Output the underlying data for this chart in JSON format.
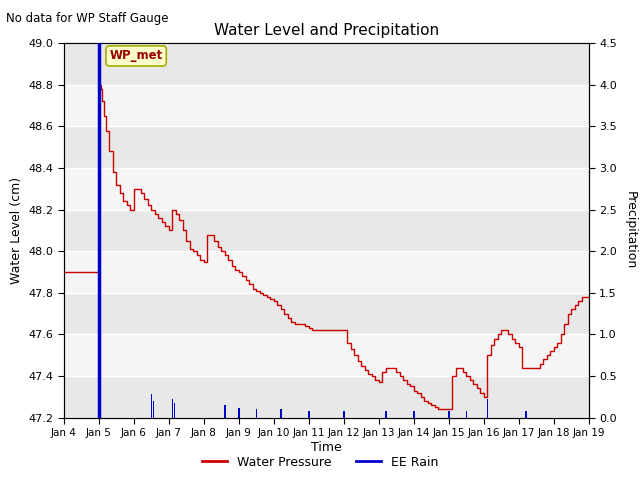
{
  "title": "Water Level and Precipitation",
  "subtitle": "No data for WP Staff Gauge",
  "xlabel": "Time",
  "ylabel_left": "Water Level (cm)",
  "ylabel_right": "Precipitation",
  "annotation_text": "WP_met",
  "ylim_left": [
    47.2,
    49.0
  ],
  "ylim_right": [
    0.0,
    4.5
  ],
  "yticks_left": [
    47.2,
    47.4,
    47.6,
    47.8,
    48.0,
    48.2,
    48.4,
    48.6,
    48.8,
    49.0
  ],
  "yticks_right": [
    0.0,
    0.5,
    1.0,
    1.5,
    2.0,
    2.5,
    3.0,
    3.5,
    4.0,
    4.5
  ],
  "legend_items": [
    "Water Pressure",
    "EE Rain"
  ],
  "water_pressure_color": "#cc0000",
  "rain_color": "#0000cc",
  "xmin": 0,
  "xmax": 15,
  "xtick_positions": [
    0,
    1,
    2,
    3,
    4,
    5,
    6,
    7,
    8,
    9,
    10,
    11,
    12,
    13,
    14,
    15
  ],
  "xtick_labels": [
    "Jan 4",
    "Jan 5",
    "Jan 6",
    "Jan 7",
    "Jan 8",
    "Jan 9",
    "Jan 10",
    "Jan 11",
    "Jan 12",
    "Jan 13",
    "Jan 14",
    "Jan 15",
    "Jan 16",
    "Jan 17",
    "Jan 18",
    "Jan 19"
  ],
  "wp_x": [
    0.0,
    0.5,
    0.9,
    1.0,
    1.05,
    1.1,
    1.15,
    1.2,
    1.3,
    1.4,
    1.5,
    1.6,
    1.7,
    1.8,
    1.9,
    2.0,
    2.1,
    2.2,
    2.3,
    2.4,
    2.5,
    2.6,
    2.7,
    2.8,
    2.9,
    3.0,
    3.1,
    3.2,
    3.3,
    3.4,
    3.5,
    3.6,
    3.7,
    3.8,
    3.9,
    4.0,
    4.1,
    4.2,
    4.3,
    4.4,
    4.5,
    4.6,
    4.7,
    4.8,
    4.9,
    5.0,
    5.1,
    5.2,
    5.3,
    5.4,
    5.5,
    5.6,
    5.7,
    5.8,
    5.9,
    6.0,
    6.1,
    6.2,
    6.3,
    6.4,
    6.5,
    6.6,
    6.7,
    6.8,
    6.9,
    7.0,
    7.1,
    7.2,
    7.3,
    7.4,
    7.5,
    7.6,
    7.7,
    7.8,
    7.9,
    8.0,
    8.1,
    8.2,
    8.3,
    8.4,
    8.5,
    8.6,
    8.7,
    8.8,
    8.9,
    9.0,
    9.1,
    9.2,
    9.3,
    9.4,
    9.5,
    9.6,
    9.7,
    9.8,
    9.9,
    10.0,
    10.1,
    10.2,
    10.3,
    10.4,
    10.5,
    10.6,
    10.7,
    10.8,
    10.9,
    11.0,
    11.1,
    11.2,
    11.3,
    11.4,
    11.5,
    11.6,
    11.7,
    11.8,
    11.9,
    12.0,
    12.1,
    12.2,
    12.3,
    12.4,
    12.5,
    12.6,
    12.7,
    12.8,
    12.9,
    13.0,
    13.1,
    13.2,
    13.3,
    13.4,
    13.5,
    13.6,
    13.7,
    13.8,
    13.9,
    14.0,
    14.1,
    14.2,
    14.3,
    14.4,
    14.5,
    14.6,
    14.7,
    14.8,
    14.9,
    15.0
  ],
  "wp_y": [
    47.9,
    47.9,
    47.9,
    48.8,
    48.78,
    48.72,
    48.65,
    48.58,
    48.48,
    48.38,
    48.32,
    48.28,
    48.24,
    48.22,
    48.2,
    48.3,
    48.3,
    48.28,
    48.25,
    48.22,
    48.2,
    48.18,
    48.16,
    48.14,
    48.12,
    48.1,
    48.2,
    48.18,
    48.15,
    48.1,
    48.05,
    48.01,
    48.0,
    47.98,
    47.96,
    47.95,
    48.08,
    48.08,
    48.05,
    48.02,
    48.0,
    47.98,
    47.96,
    47.93,
    47.91,
    47.9,
    47.88,
    47.86,
    47.84,
    47.82,
    47.81,
    47.8,
    47.79,
    47.78,
    47.77,
    47.76,
    47.74,
    47.72,
    47.7,
    47.68,
    47.66,
    47.65,
    47.65,
    47.65,
    47.64,
    47.63,
    47.62,
    47.62,
    47.62,
    47.62,
    47.62,
    47.62,
    47.62,
    47.62,
    47.62,
    47.62,
    47.56,
    47.53,
    47.5,
    47.47,
    47.45,
    47.43,
    47.41,
    47.4,
    47.38,
    47.37,
    47.42,
    47.44,
    47.44,
    47.44,
    47.42,
    47.4,
    47.38,
    47.36,
    47.35,
    47.33,
    47.32,
    47.3,
    47.28,
    47.27,
    47.26,
    47.25,
    47.24,
    47.24,
    47.24,
    47.24,
    47.4,
    47.44,
    47.44,
    47.42,
    47.4,
    47.38,
    47.36,
    47.34,
    47.32,
    47.3,
    47.5,
    47.55,
    47.58,
    47.6,
    47.62,
    47.62,
    47.6,
    47.58,
    47.56,
    47.54,
    47.44,
    47.44,
    47.44,
    47.44,
    47.44,
    47.46,
    47.48,
    47.5,
    47.52,
    47.54,
    47.56,
    47.6,
    47.65,
    47.7,
    47.72,
    47.74,
    47.76,
    47.78,
    47.78,
    47.78
  ],
  "rain_events": [
    [
      1.0,
      4.5
    ],
    [
      1.02,
      0.35
    ],
    [
      1.05,
      0.25
    ],
    [
      2.5,
      0.28
    ],
    [
      2.55,
      0.2
    ],
    [
      3.1,
      0.22
    ],
    [
      3.15,
      0.18
    ],
    [
      4.6,
      0.15
    ],
    [
      5.0,
      0.12
    ],
    [
      5.5,
      0.1
    ],
    [
      6.2,
      0.1
    ],
    [
      7.0,
      0.08
    ],
    [
      8.0,
      0.08
    ],
    [
      9.2,
      0.08
    ],
    [
      10.0,
      0.08
    ],
    [
      11.0,
      0.08
    ],
    [
      11.5,
      0.08
    ],
    [
      12.1,
      0.22
    ],
    [
      13.2,
      0.08
    ]
  ]
}
